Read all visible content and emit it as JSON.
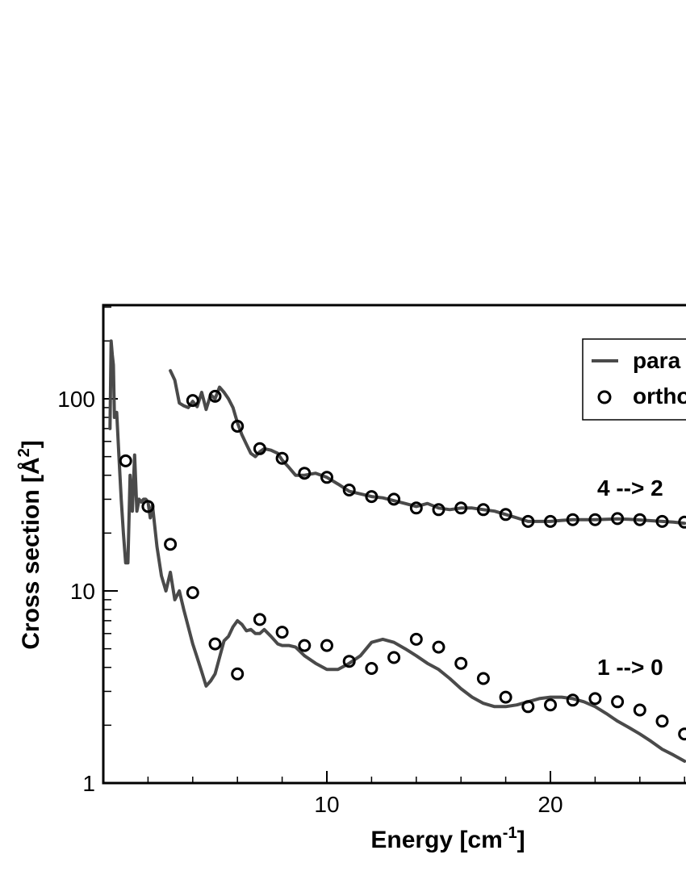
{
  "chart_data": {
    "type": "line",
    "xlabel": "Energy [cm",
    "xlabel_sup": "-1",
    "xlabel_end": "]",
    "ylabel": "Cross section [Å",
    "ylabel_sup": "2",
    "ylabel_end": "]",
    "yscale": "log",
    "xlim": [
      0,
      26
    ],
    "ylim": [
      1,
      300
    ],
    "xticks": [
      10,
      20
    ],
    "yticks": [
      1,
      10,
      100
    ],
    "ytick_labels": [
      "1",
      "10",
      "100"
    ],
    "grid": false,
    "legend": {
      "position": "top-right",
      "entries": [
        "para",
        "ortho"
      ]
    },
    "annotations": [
      {
        "text": "4 --> 2",
        "x": 22.3,
        "y": 37
      },
      {
        "text": "1 --> 0",
        "x": 22.3,
        "y": 4.5
      }
    ],
    "series": [
      {
        "name": "para",
        "style": "line",
        "color": "#4a4a4a",
        "curves": [
          {
            "x": [
              0.3,
              0.35,
              0.4,
              0.45,
              0.5,
              0.6,
              0.7,
              0.8,
              0.9,
              1.0,
              1.1,
              1.2,
              1.3,
              1.4,
              1.5,
              1.6,
              1.7,
              1.8,
              1.9,
              2.0,
              2.1,
              2.2,
              2.4,
              2.6,
              2.8,
              3.0,
              3.2,
              3.4,
              3.6,
              3.8,
              4.0,
              4.2,
              4.4,
              4.6,
              4.8,
              5.0,
              5.2,
              5.4,
              5.6,
              5.8,
              6.0,
              6.2,
              6.4,
              6.6,
              6.8,
              7.0,
              7.2,
              7.5,
              7.8,
              8.0,
              8.3,
              8.6,
              9.0,
              9.5,
              10.0,
              10.5,
              11.0,
              11.5,
              12.0,
              12.5,
              13.0,
              13.5,
              14.0,
              14.5,
              15.0,
              15.5,
              16.0,
              16.5,
              17.0,
              17.5,
              18.0,
              18.5,
              19.0,
              19.5,
              20.0,
              20.5,
              21.0,
              21.5,
              22.0,
              22.5,
              23.0,
              23.5,
              24.0,
              24.5,
              25.0,
              25.5,
              26.0
            ],
            "y": [
              70,
              200,
              170,
              150,
              80,
              85,
              50,
              30,
              20,
              14,
              14,
              40,
              26,
              51,
              26,
              30,
              29,
              30,
              30,
              29,
              24,
              28,
              17,
              12,
              10,
              12.5,
              9,
              10,
              8,
              6.5,
              5.3,
              4.5,
              3.8,
              3.2,
              3.4,
              3.7,
              4.5,
              5.5,
              5.8,
              6.5,
              7.0,
              6.7,
              6.2,
              6.3,
              6.0,
              6.0,
              6.3,
              5.8,
              5.3,
              5.2,
              5.2,
              5.1,
              4.6,
              4.2,
              3.9,
              3.9,
              4.2,
              4.6,
              5.4,
              5.6,
              5.4,
              5.0,
              4.6,
              4.2,
              3.9,
              3.5,
              3.1,
              2.8,
              2.6,
              2.5,
              2.5,
              2.55,
              2.65,
              2.75,
              2.8,
              2.8,
              2.75,
              2.65,
              2.5,
              2.3,
              2.1,
              1.95,
              1.8,
              1.65,
              1.5,
              1.4,
              1.3
            ]
          },
          {
            "x": [
              3.0,
              3.2,
              3.4,
              3.6,
              3.8,
              4.0,
              4.2,
              4.4,
              4.6,
              4.8,
              5.0,
              5.2,
              5.4,
              5.6,
              5.8,
              6.0,
              6.2,
              6.4,
              6.6,
              6.8,
              7.0,
              7.2,
              7.5,
              7.8,
              8.0,
              8.3,
              8.6,
              9.0,
              9.5,
              10.0,
              10.5,
              11.0,
              11.5,
              12.0,
              12.5,
              13.0,
              13.5,
              14.0,
              14.5,
              15.0,
              15.5,
              16.0,
              16.5,
              17.0,
              17.5,
              18.0,
              18.5,
              19.0,
              19.5,
              20.0,
              20.5,
              21.0,
              21.5,
              22.0,
              22.5,
              23.0,
              23.5,
              24.0,
              24.5,
              25.0,
              25.5,
              26.0
            ],
            "y": [
              140,
              125,
              95,
              92,
              90,
              97,
              91,
              108,
              88,
              105,
              100,
              115,
              108,
              100,
              90,
              75,
              65,
              58,
              52,
              50,
              53,
              55,
              54,
              52,
              48,
              44,
              40,
              40,
              41,
              39,
              36,
              33,
              32,
              31,
              30.5,
              29.5,
              28.5,
              27.5,
              28.5,
              27,
              26.5,
              27,
              27,
              26.5,
              26,
              25,
              24,
              23,
              23,
              23,
              23.3,
              23.5,
              23.5,
              23.5,
              23.6,
              23.7,
              23.6,
              23.4,
              23.2,
              23.0,
              22.8,
              22.5
            ]
          }
        ]
      },
      {
        "name": "ortho",
        "style": "markers",
        "marker": "circle-open",
        "color": "#000000",
        "points": {
          "x": [
            1,
            2,
            3,
            4,
            5,
            6,
            7,
            8,
            9,
            10,
            11,
            12,
            13,
            14,
            15,
            16,
            17,
            18,
            19,
            20,
            21,
            22,
            23,
            24,
            25,
            26,
            4,
            5,
            6,
            7,
            8,
            9,
            10,
            11,
            12,
            13,
            14,
            15,
            16,
            17,
            18,
            19,
            20,
            21,
            22,
            23,
            24,
            25,
            26
          ],
          "y": [
            47.5,
            27.5,
            17.5,
            9.8,
            5.3,
            3.7,
            7.1,
            6.1,
            5.2,
            5.2,
            4.3,
            3.95,
            4.5,
            5.6,
            5.1,
            4.2,
            3.5,
            2.8,
            2.5,
            2.55,
            2.7,
            2.75,
            2.65,
            2.4,
            2.1,
            1.8,
            98,
            103,
            72,
            55,
            49,
            41,
            39,
            33.5,
            31,
            30,
            27,
            26.5,
            27,
            26.5,
            25,
            23,
            23,
            23.5,
            23.5,
            23.8,
            23.5,
            23,
            22.8
          ]
        }
      }
    ]
  }
}
